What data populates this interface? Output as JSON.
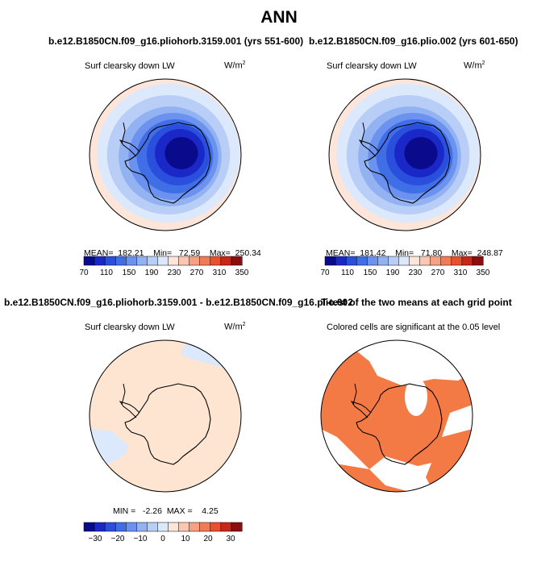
{
  "figure_title": "ANN",
  "panels": {
    "top_left": {
      "title": "b.e12.B1850CN.f09_g16.pliohorb.3159.001 (yrs 551-600)",
      "variable": "Surf clearsky down LW",
      "units": "W/m",
      "units_exp": "2",
      "stats": "MEAN=  182.21    Min=   72.59    Max=  250.34"
    },
    "top_right": {
      "title": "b.e12.B1850CN.f09_g16.plio.002 (yrs 601-650)",
      "variable": "Surf clearsky down LW",
      "units": "W/m",
      "units_exp": "2",
      "stats": "MEAN=  181.42    Min=   71.80    Max=  248.87"
    },
    "bottom_left": {
      "title": "b.e12.B1850CN.f09_g16.pliohorb.3159.001 - b.e12.B1850CN.f09_g16.plio.002",
      "variable": "Surf clearsky down LW",
      "units": "W/m",
      "units_exp": "2",
      "stats": "MIN =   -2.26  MAX =    4.25"
    },
    "bottom_right": {
      "title": "T-test of the two means at each grid point",
      "subtitle": "Colored cells are significant at the 0.05 level"
    }
  },
  "chart_data": [
    {
      "type": "heatmap",
      "projection": "south polar stereographic",
      "title": "b.e12.B1850CN.f09_g16.pliohorb.3159.001 (yrs 551-600)",
      "variable": "Surf clearsky down LW",
      "units": "W/m2",
      "mean": 182.21,
      "min": 72.59,
      "max": 250.34,
      "colorbar_levels": [
        70,
        90,
        110,
        130,
        150,
        170,
        190,
        210,
        230,
        250,
        270,
        290,
        310,
        330,
        350
      ],
      "colorbar_tick_labels": [
        "70",
        "110",
        "150",
        "190",
        "230",
        "270",
        "310",
        "350"
      ]
    },
    {
      "type": "heatmap",
      "projection": "south polar stereographic",
      "title": "b.e12.B1850CN.f09_g16.plio.002 (yrs 601-650)",
      "variable": "Surf clearsky down LW",
      "units": "W/m2",
      "mean": 181.42,
      "min": 71.8,
      "max": 248.87,
      "colorbar_levels": [
        70,
        90,
        110,
        130,
        150,
        170,
        190,
        210,
        230,
        250,
        270,
        290,
        310,
        330,
        350
      ],
      "colorbar_tick_labels": [
        "70",
        "110",
        "150",
        "190",
        "230",
        "270",
        "310",
        "350"
      ]
    },
    {
      "type": "heatmap",
      "projection": "south polar stereographic",
      "title": "b.e12.B1850CN.f09_g16.pliohorb.3159.001 - b.e12.B1850CN.f09_g16.plio.002",
      "variable": "Surf clearsky down LW",
      "units": "W/m2",
      "min": -2.26,
      "max": 4.25,
      "colorbar_levels": [
        -35,
        -30,
        -25,
        -20,
        -15,
        -10,
        -5,
        0,
        5,
        10,
        15,
        20,
        25,
        30,
        35
      ],
      "colorbar_tick_labels": [
        "-30",
        "-20",
        "-10",
        "0",
        "10",
        "20",
        "30"
      ]
    },
    {
      "type": "heatmap",
      "projection": "south polar stereographic",
      "title": "T-test of the two means at each grid point",
      "subtitle": "Colored cells are significant at the 0.05 level",
      "significance_level": 0.05
    }
  ],
  "colors": {
    "palette": [
      "#0a0a8c",
      "#1a28c8",
      "#2a4fdc",
      "#3f6ee6",
      "#6a92ee",
      "#92b2f2",
      "#b8cef6",
      "#dce8fb",
      "#fde5da",
      "#fbc7b0",
      "#f7a183",
      "#f27a55",
      "#ea4f2e",
      "#c9261a",
      "#8c0d0d"
    ],
    "diff_bg": "#fde5d2",
    "diff_light_blue": "#dce8fb",
    "significant": "#f47a45",
    "coast": "#000000"
  },
  "icons": {
    "projection": "polar-stereographic-map"
  }
}
